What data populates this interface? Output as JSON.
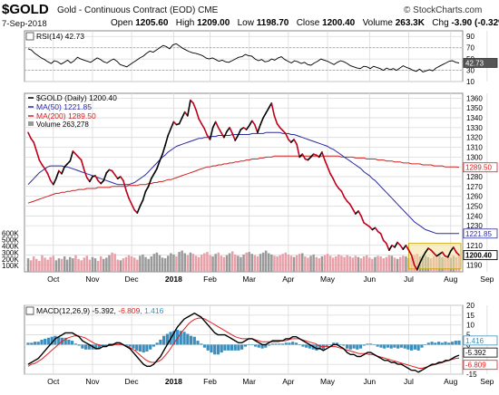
{
  "header": {
    "symbol": "$GOLD",
    "name": "Gold - Continuous Contract (EOD)",
    "exchange": "CME",
    "date": "7-Sep-2018",
    "open_label": "Open",
    "open": "1205.60",
    "high_label": "High",
    "high": "1209.00",
    "low_label": "Low",
    "low": "1198.70",
    "close_label": "Close",
    "close": "1200.40",
    "volume_label": "Volume",
    "volume": "263.3K",
    "chg_label": "Chg",
    "chg": "-3.90 (-0.32%)",
    "brand": "© StockCharts.com"
  },
  "colors": {
    "price_up": "#000000",
    "price_down": "#c0001a",
    "ma50": "#2b2ba0",
    "ma200": "#d02020",
    "vol_up": "#9a9a9a",
    "vol_down": "#e8a0a8",
    "grid": "#d9d9d9",
    "macd": "#000000",
    "signal": "#e02020",
    "hist": "#3a8fbf"
  },
  "chart_data": [
    {
      "type": "line",
      "title": "RSI(14) 42.73",
      "ylim": [
        10,
        100
      ],
      "ticks": [
        "90",
        "70",
        "50",
        "30",
        "10"
      ],
      "tick_values": [
        90,
        70,
        50,
        30,
        10
      ],
      "last_label": "42.73",
      "values": [
        68,
        66,
        60,
        56,
        52,
        49,
        45,
        42,
        47,
        45,
        41,
        44,
        48,
        43,
        47,
        53,
        50,
        48,
        46,
        44,
        48,
        52,
        49,
        45,
        43,
        47,
        50,
        46,
        40,
        38,
        36,
        40,
        44,
        48,
        52,
        55,
        60,
        64,
        62,
        66,
        70,
        74,
        72,
        68,
        75,
        77,
        73,
        69,
        66,
        63,
        61,
        60,
        58,
        56,
        52,
        50,
        52,
        49,
        46,
        48,
        45,
        44,
        47,
        50,
        53,
        54,
        58,
        56,
        55,
        50,
        47,
        49,
        45,
        46,
        50,
        48,
        52,
        54,
        49,
        46,
        43,
        47,
        45,
        42,
        44,
        40,
        39,
        43,
        46,
        50,
        48,
        46,
        43,
        40,
        44,
        47,
        45,
        42,
        38,
        36,
        34,
        33,
        37,
        36,
        33,
        37,
        35,
        33,
        30,
        34,
        31,
        33,
        30,
        34,
        38,
        35,
        33,
        30,
        28,
        32,
        27,
        29,
        31,
        29,
        34,
        37,
        40,
        43,
        46,
        47,
        44,
        43
      ]
    },
    {
      "type": "line",
      "title": "$GOLD (Daily) 1200.40",
      "ylim": [
        1183,
        1365
      ],
      "ticks": [
        "1360",
        "1350",
        "1340",
        "1330",
        "1320",
        "1310",
        "1300",
        "1290",
        "1280",
        "1270",
        "1260",
        "1250",
        "1240",
        "1230",
        "1210",
        "1200",
        "1190"
      ],
      "tick_values": [
        1360,
        1350,
        1340,
        1330,
        1320,
        1310,
        1300,
        1290,
        1280,
        1270,
        1260,
        1250,
        1240,
        1230,
        1210,
        1200,
        1190
      ],
      "x_labels": [
        "Oct",
        "Nov",
        "Dec",
        "2018",
        "Feb",
        "Mar",
        "Apr",
        "May",
        "Jun",
        "Jul",
        "Aug",
        "Sep"
      ],
      "x_label_pos": [
        9,
        23,
        37,
        52,
        65,
        79,
        93,
        107,
        122,
        136,
        151,
        164
      ],
      "series": [
        {
          "name": "$GOLD (Daily) 1200.40",
          "values": [
            1325,
            1319,
            1315,
            1306,
            1297,
            1292,
            1288,
            1283,
            1276,
            1272,
            1278,
            1286,
            1283,
            1290,
            1293,
            1296,
            1306,
            1303,
            1300,
            1297,
            1287,
            1279,
            1275,
            1280,
            1281,
            1276,
            1273,
            1276,
            1284,
            1287,
            1286,
            1282,
            1278,
            1280,
            1276,
            1266,
            1258,
            1252,
            1246,
            1243,
            1250,
            1256,
            1265,
            1270,
            1278,
            1283,
            1288,
            1296,
            1303,
            1312,
            1322,
            1329,
            1336,
            1333,
            1334,
            1340,
            1346,
            1342,
            1358,
            1355,
            1348,
            1339,
            1334,
            1329,
            1322,
            1318,
            1330,
            1336,
            1330,
            1325,
            1320,
            1326,
            1330,
            1324,
            1317,
            1322,
            1328,
            1330,
            1328,
            1332,
            1337,
            1333,
            1325,
            1333,
            1340,
            1345,
            1350,
            1355,
            1342,
            1334,
            1330,
            1327,
            1324,
            1318,
            1315,
            1318,
            1313,
            1300,
            1303,
            1298,
            1297,
            1300,
            1303,
            1302,
            1300,
            1305,
            1297,
            1290,
            1283,
            1278,
            1272,
            1268,
            1265,
            1259,
            1255,
            1252,
            1247,
            1242,
            1245,
            1240,
            1233,
            1231,
            1229,
            1226,
            1228,
            1224,
            1222,
            1215,
            1212,
            1205,
            1210,
            1208,
            1213,
            1210,
            1206,
            1210,
            1205,
            1200,
            1190,
            1185,
            1192,
            1198,
            1203,
            1207,
            1205,
            1202,
            1199,
            1201,
            1203,
            1199,
            1198,
            1204,
            1208,
            1203,
            1200
          ]
        },
        {
          "name": "MA(50) 1221.85",
          "values": [
            1272,
            1275,
            1278,
            1281,
            1284,
            1286,
            1288,
            1290,
            1291,
            1291,
            1291,
            1291,
            1291,
            1290,
            1290,
            1289,
            1288,
            1287,
            1286,
            1285,
            1284,
            1283,
            1282,
            1281,
            1280,
            1279,
            1278,
            1277,
            1276,
            1275,
            1274,
            1273,
            1272,
            1272,
            1272,
            1272,
            1272,
            1273,
            1274,
            1276,
            1278,
            1280,
            1282,
            1285,
            1288,
            1291,
            1294,
            1297,
            1300,
            1302,
            1305,
            1307,
            1309,
            1311,
            1312,
            1313,
            1314,
            1315,
            1316,
            1317,
            1318,
            1319,
            1319,
            1320,
            1320,
            1321,
            1321,
            1321,
            1322,
            1322,
            1322,
            1322,
            1322,
            1323,
            1323,
            1323,
            1323,
            1323,
            1323,
            1323,
            1324,
            1324,
            1324,
            1324,
            1324,
            1325,
            1325,
            1325,
            1325,
            1325,
            1325,
            1324,
            1324,
            1324,
            1323,
            1323,
            1322,
            1321,
            1320,
            1319,
            1318,
            1317,
            1316,
            1315,
            1314,
            1313,
            1312,
            1311,
            1309,
            1308,
            1306,
            1304,
            1302,
            1300,
            1298,
            1296,
            1294,
            1292,
            1290,
            1288,
            1285,
            1283,
            1281,
            1278,
            1276,
            1273,
            1270,
            1267,
            1264,
            1261,
            1258,
            1255,
            1252,
            1249,
            1246,
            1243,
            1240,
            1237,
            1234,
            1232,
            1230,
            1228,
            1226,
            1225,
            1224,
            1223,
            1222,
            1222,
            1222,
            1222,
            1222,
            1222,
            1222,
            1222,
            1222
          ]
        },
        {
          "name": "MA(200) 1289.50",
          "values": [
            1253,
            1254,
            1255,
            1256,
            1257,
            1258,
            1259,
            1260,
            1261,
            1262,
            1263,
            1263,
            1264,
            1264,
            1265,
            1265,
            1266,
            1266,
            1267,
            1267,
            1267,
            1268,
            1268,
            1268,
            1268,
            1269,
            1269,
            1269,
            1269,
            1269,
            1270,
            1270,
            1270,
            1270,
            1270,
            1270,
            1271,
            1271,
            1271,
            1271,
            1272,
            1272,
            1272,
            1273,
            1273,
            1274,
            1274,
            1275,
            1275,
            1276,
            1277,
            1277,
            1278,
            1279,
            1280,
            1281,
            1282,
            1283,
            1284,
            1285,
            1286,
            1287,
            1288,
            1289,
            1290,
            1290,
            1291,
            1291,
            1292,
            1292,
            1293,
            1293,
            1294,
            1294,
            1295,
            1295,
            1296,
            1296,
            1297,
            1297,
            1298,
            1298,
            1298,
            1299,
            1299,
            1300,
            1300,
            1300,
            1301,
            1301,
            1301,
            1301,
            1301,
            1301,
            1301,
            1301,
            1301,
            1301,
            1301,
            1301,
            1301,
            1301,
            1301,
            1301,
            1301,
            1301,
            1301,
            1301,
            1301,
            1301,
            1301,
            1301,
            1300,
            1300,
            1300,
            1300,
            1300,
            1299,
            1299,
            1299,
            1299,
            1298,
            1298,
            1298,
            1298,
            1297,
            1297,
            1297,
            1296,
            1296,
            1296,
            1295,
            1295,
            1295,
            1294,
            1294,
            1294,
            1293,
            1293,
            1293,
            1293,
            1292,
            1292,
            1292,
            1292,
            1291,
            1291,
            1291,
            1291,
            1290,
            1290,
            1290,
            1290,
            1290,
            1289.5
          ]
        }
      ],
      "ma50_label": "1221.85",
      "ma200_label": "1289.50",
      "close_label": "1200.40",
      "volume_title": "Volume 263,278",
      "volume_ticks": [
        "600K",
        "500K",
        "400K",
        "300K",
        "200K",
        "100K"
      ],
      "volume_tick_values": [
        600,
        500,
        400,
        300,
        200,
        100
      ],
      "volume_k": [
        210,
        180,
        240,
        200,
        170,
        260,
        220,
        190,
        230,
        250,
        180,
        210,
        200,
        240,
        190,
        230,
        210,
        260,
        200,
        180,
        220,
        250,
        190,
        230,
        210,
        170,
        240,
        200,
        220,
        260,
        300,
        280,
        190,
        180,
        210,
        230,
        260,
        240,
        220,
        190,
        250,
        270,
        230,
        200,
        240,
        280,
        300,
        260,
        220,
        210,
        250,
        290,
        270,
        240,
        310,
        330,
        290,
        260,
        300,
        280,
        250,
        230,
        270,
        290,
        310,
        260,
        240,
        280,
        300,
        250,
        230,
        260,
        290,
        320,
        270,
        250,
        230,
        270,
        300,
        310,
        280,
        260,
        240,
        280,
        300,
        330,
        290,
        270,
        250,
        240,
        260,
        280,
        300,
        270,
        250,
        230,
        260,
        280,
        290,
        240,
        220,
        250,
        270,
        230,
        210,
        240,
        260,
        280,
        250,
        220,
        240,
        270,
        250,
        230,
        260,
        240,
        220,
        250,
        230,
        210,
        240,
        260,
        220,
        200,
        230,
        250,
        240,
        210,
        230,
        260,
        250,
        220,
        200,
        230,
        250,
        240,
        210,
        230,
        260,
        280,
        240,
        220,
        250,
        230,
        210,
        240,
        220,
        250,
        230,
        210,
        240,
        220,
        250,
        230,
        263
      ]
    },
    {
      "type": "line",
      "title": "MACD(12,26,9)",
      "macd_value": "-5.392",
      "signal_value": "-6.809",
      "hist_value": "1.416",
      "ylim": [
        -15,
        20
      ],
      "ticks": [
        "20",
        "15",
        "10",
        "5",
        "0",
        "-10",
        "-15"
      ],
      "tick_values": [
        20,
        15,
        10,
        5,
        0,
        -10,
        -15
      ],
      "series": [
        {
          "name": "-5.392",
          "values": [
            -10,
            -9,
            -8,
            -7,
            -5,
            -3,
            -1,
            1,
            3,
            4,
            5,
            6,
            6,
            6,
            5,
            4,
            2,
            1,
            0,
            -1,
            -2,
            -2,
            -1,
            -1,
            0,
            0,
            1,
            1,
            0,
            -1,
            -2,
            -4,
            -6,
            -8,
            -10,
            -11,
            -11,
            -10,
            -8,
            -6,
            -3,
            0,
            3,
            6,
            9,
            11,
            13,
            14,
            15,
            16,
            15,
            14,
            12,
            10,
            8,
            6,
            5,
            5,
            5,
            4,
            3,
            2,
            1,
            1,
            2,
            3,
            3,
            2,
            1,
            0,
            0,
            1,
            2,
            2,
            2,
            2,
            3,
            3,
            4,
            4,
            3,
            2,
            1,
            0,
            -1,
            -2,
            -2,
            -3,
            -2,
            -1,
            0,
            0,
            -1,
            -2,
            -4,
            -5,
            -5,
            -6,
            -6,
            -5,
            -4,
            -4,
            -5,
            -6,
            -7,
            -8,
            -8,
            -9,
            -9,
            -10,
            -10,
            -11,
            -12,
            -13,
            -13,
            -14,
            -13,
            -12,
            -11,
            -10,
            -10,
            -9,
            -9,
            -8,
            -8,
            -7,
            -6,
            -5.392
          ]
        },
        {
          "name": "-6.809",
          "values": [
            -11,
            -10,
            -9.5,
            -8.5,
            -7.5,
            -6,
            -4.5,
            -3,
            -1.5,
            0,
            1.5,
            2.5,
            3.5,
            4,
            4.5,
            4.5,
            4,
            3.5,
            2.5,
            1.5,
            0.5,
            0,
            -0.5,
            -0.5,
            -0.5,
            -0.5,
            0,
            0,
            0,
            -0.5,
            -1,
            -2,
            -3,
            -4.5,
            -6,
            -7.5,
            -8.5,
            -9,
            -9,
            -8.5,
            -7.5,
            -5.5,
            -3.5,
            -1,
            1.5,
            4,
            6.5,
            8.5,
            10.5,
            12,
            13,
            13.5,
            13.5,
            13,
            12,
            11,
            10,
            9,
            8,
            7,
            6,
            5,
            4,
            3.5,
            3,
            3,
            3,
            3,
            2.5,
            2,
            1.5,
            1.5,
            1.5,
            1.5,
            1.5,
            1.5,
            2,
            2,
            2.5,
            3,
            3,
            3,
            2.5,
            2,
            1.5,
            1,
            0.5,
            -0.5,
            -1,
            -1,
            -1,
            -1,
            -1,
            -1.5,
            -2,
            -2.5,
            -3,
            -3.5,
            -4,
            -4.5,
            -4.5,
            -4.5,
            -5,
            -5,
            -5.5,
            -6,
            -6.5,
            -7,
            -7.5,
            -8,
            -8.5,
            -9,
            -9.5,
            -10,
            -10.5,
            -11,
            -11.5,
            -12,
            -12,
            -11.5,
            -11,
            -10.5,
            -10,
            -9.5,
            -9,
            -8.5,
            -8,
            -7.5,
            -7,
            -6.809
          ]
        }
      ]
    }
  ]
}
